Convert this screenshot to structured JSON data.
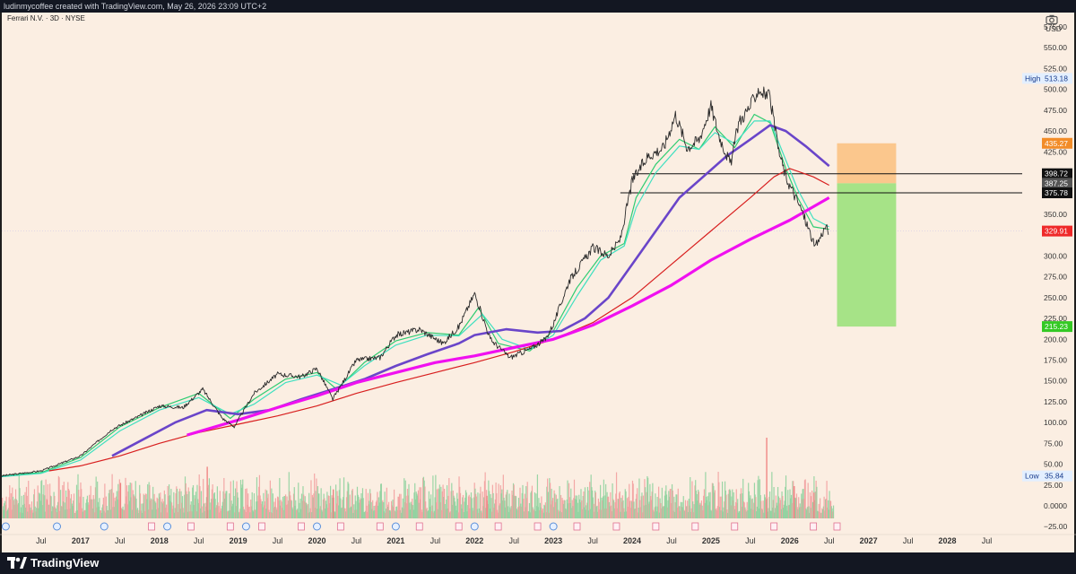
{
  "header": {
    "credit": "ludinmycoffee created with TradingView.com, May 26, 2026 23:09 UTC+2"
  },
  "legend": {
    "symbol": "Ferrari N.V. · 3D · NYSE"
  },
  "footer": {
    "brand": "TradingView"
  },
  "colors": {
    "background": "#fbeee2",
    "ema_fast": "#2ecc71",
    "ema_fast2": "#3fe0c0",
    "ma_blue": "#6a45c9",
    "ma_red": "#d81e1e",
    "ma_magenta": "#f010f0",
    "tp_zone": "#a6e387",
    "stop_zone": "#fbc78d"
  },
  "chart_data": {
    "type": "line",
    "title": "Ferrari N.V. · 3D · NYSE",
    "currency": "USD",
    "ylim": [
      -25,
      575
    ],
    "y_ticks": [
      "575.00",
      "550.00",
      "525.00",
      "500.00",
      "475.00",
      "450.00",
      "425.00",
      "400.00",
      "350.00",
      "300.00",
      "275.00",
      "250.00",
      "225.00",
      "200.00",
      "175.00",
      "150.00",
      "125.00",
      "100.00",
      "75.00",
      "50.00",
      "25.00",
      "0.0000",
      "−25.00"
    ],
    "x_ticks": [
      {
        "label": "Jul",
        "year": false,
        "t": 2016.5
      },
      {
        "label": "2017",
        "year": true,
        "t": 2017.0
      },
      {
        "label": "Jul",
        "year": false,
        "t": 2017.5
      },
      {
        "label": "2018",
        "year": true,
        "t": 2018.0
      },
      {
        "label": "Jul",
        "year": false,
        "t": 2018.5
      },
      {
        "label": "2019",
        "year": true,
        "t": 2019.0
      },
      {
        "label": "Jul",
        "year": false,
        "t": 2019.5
      },
      {
        "label": "2020",
        "year": true,
        "t": 2020.0
      },
      {
        "label": "Jul",
        "year": false,
        "t": 2020.5
      },
      {
        "label": "2021",
        "year": true,
        "t": 2021.0
      },
      {
        "label": "Jul",
        "year": false,
        "t": 2021.5
      },
      {
        "label": "2022",
        "year": true,
        "t": 2022.0
      },
      {
        "label": "Jul",
        "year": false,
        "t": 2022.5
      },
      {
        "label": "2023",
        "year": true,
        "t": 2023.0
      },
      {
        "label": "Jul",
        "year": false,
        "t": 2023.5
      },
      {
        "label": "2024",
        "year": true,
        "t": 2024.0
      },
      {
        "label": "Jul",
        "year": false,
        "t": 2024.5
      },
      {
        "label": "2025",
        "year": true,
        "t": 2025.0
      },
      {
        "label": "Jul",
        "year": false,
        "t": 2025.5
      },
      {
        "label": "2026",
        "year": true,
        "t": 2026.0
      },
      {
        "label": "Jul",
        "year": false,
        "t": 2026.5
      },
      {
        "label": "2027",
        "year": true,
        "t": 2027.0
      },
      {
        "label": "Jul",
        "year": false,
        "t": 2027.5
      },
      {
        "label": "2028",
        "year": true,
        "t": 2028.0
      },
      {
        "label": "Jul",
        "year": false,
        "t": 2028.5
      }
    ],
    "price": [
      [
        2016.0,
        36
      ],
      [
        2016.5,
        42
      ],
      [
        2017.0,
        60
      ],
      [
        2017.4,
        92
      ],
      [
        2017.75,
        108
      ],
      [
        2018.0,
        120
      ],
      [
        2018.3,
        118
      ],
      [
        2018.55,
        140
      ],
      [
        2018.8,
        105
      ],
      [
        2018.95,
        95
      ],
      [
        2019.2,
        135
      ],
      [
        2019.5,
        158
      ],
      [
        2019.8,
        155
      ],
      [
        2020.0,
        165
      ],
      [
        2020.2,
        128
      ],
      [
        2020.5,
        175
      ],
      [
        2020.8,
        178
      ],
      [
        2021.0,
        205
      ],
      [
        2021.3,
        212
      ],
      [
        2021.6,
        195
      ],
      [
        2021.8,
        215
      ],
      [
        2022.0,
        255
      ],
      [
        2022.2,
        200
      ],
      [
        2022.45,
        178
      ],
      [
        2022.7,
        188
      ],
      [
        2022.9,
        200
      ],
      [
        2023.0,
        218
      ],
      [
        2023.2,
        270
      ],
      [
        2023.5,
        310
      ],
      [
        2023.7,
        300
      ],
      [
        2023.85,
        320
      ],
      [
        2024.0,
        390
      ],
      [
        2024.2,
        420
      ],
      [
        2024.4,
        430
      ],
      [
        2024.55,
        470
      ],
      [
        2024.7,
        430
      ],
      [
        2024.85,
        440
      ],
      [
        2025.0,
        480
      ],
      [
        2025.1,
        445
      ],
      [
        2025.25,
        410
      ],
      [
        2025.35,
        460
      ],
      [
        2025.5,
        480
      ],
      [
        2025.6,
        500
      ],
      [
        2025.75,
        490
      ],
      [
        2025.85,
        430
      ],
      [
        2025.95,
        395
      ],
      [
        2026.05,
        375
      ],
      [
        2026.15,
        355
      ],
      [
        2026.25,
        330
      ],
      [
        2026.32,
        310
      ],
      [
        2026.4,
        325
      ],
      [
        2026.45,
        335
      ],
      [
        2026.5,
        330
      ]
    ],
    "series": [
      {
        "color": "#2ecc71",
        "points": [
          [
            2016.0,
            36
          ],
          [
            2016.5,
            40
          ],
          [
            2017.0,
            58
          ],
          [
            2017.5,
            95
          ],
          [
            2018.0,
            118
          ],
          [
            2018.5,
            135
          ],
          [
            2018.9,
            105
          ],
          [
            2019.2,
            128
          ],
          [
            2019.6,
            152
          ],
          [
            2020.0,
            160
          ],
          [
            2020.25,
            140
          ],
          [
            2020.6,
            172
          ],
          [
            2021.0,
            198
          ],
          [
            2021.4,
            208
          ],
          [
            2021.8,
            205
          ],
          [
            2022.05,
            238
          ],
          [
            2022.3,
            195
          ],
          [
            2022.7,
            186
          ],
          [
            2023.0,
            210
          ],
          [
            2023.3,
            262
          ],
          [
            2023.6,
            300
          ],
          [
            2023.9,
            315
          ],
          [
            2024.05,
            370
          ],
          [
            2024.3,
            410
          ],
          [
            2024.6,
            440
          ],
          [
            2024.85,
            428
          ],
          [
            2025.05,
            455
          ],
          [
            2025.3,
            430
          ],
          [
            2025.55,
            470
          ],
          [
            2025.75,
            460
          ],
          [
            2025.95,
            405
          ],
          [
            2026.1,
            370
          ],
          [
            2026.3,
            335
          ],
          [
            2026.5,
            332
          ]
        ]
      },
      {
        "color": "#3fe0c0",
        "points": [
          [
            2016.0,
            35
          ],
          [
            2016.5,
            39
          ],
          [
            2017.0,
            55
          ],
          [
            2017.5,
            90
          ],
          [
            2018.0,
            115
          ],
          [
            2018.5,
            130
          ],
          [
            2018.9,
            110
          ],
          [
            2019.2,
            122
          ],
          [
            2019.6,
            148
          ],
          [
            2020.0,
            157
          ],
          [
            2020.3,
            145
          ],
          [
            2020.6,
            168
          ],
          [
            2021.0,
            193
          ],
          [
            2021.4,
            205
          ],
          [
            2021.8,
            204
          ],
          [
            2022.1,
            230
          ],
          [
            2022.35,
            200
          ],
          [
            2022.7,
            188
          ],
          [
            2023.0,
            205
          ],
          [
            2023.3,
            252
          ],
          [
            2023.6,
            295
          ],
          [
            2023.9,
            312
          ],
          [
            2024.05,
            358
          ],
          [
            2024.3,
            400
          ],
          [
            2024.6,
            432
          ],
          [
            2024.85,
            428
          ],
          [
            2025.05,
            448
          ],
          [
            2025.3,
            435
          ],
          [
            2025.55,
            462
          ],
          [
            2025.75,
            462
          ],
          [
            2025.95,
            415
          ],
          [
            2026.1,
            380
          ],
          [
            2026.3,
            345
          ],
          [
            2026.5,
            335
          ]
        ]
      },
      {
        "color": "#6a45c9",
        "points": [
          [
            2017.4,
            60
          ],
          [
            2017.8,
            80
          ],
          [
            2018.2,
            100
          ],
          [
            2018.6,
            115
          ],
          [
            2019.0,
            110
          ],
          [
            2019.4,
            115
          ],
          [
            2019.8,
            128
          ],
          [
            2020.2,
            140
          ],
          [
            2020.6,
            152
          ],
          [
            2021.0,
            168
          ],
          [
            2021.4,
            182
          ],
          [
            2021.8,
            195
          ],
          [
            2022.0,
            205
          ],
          [
            2022.4,
            212
          ],
          [
            2022.8,
            208
          ],
          [
            2023.1,
            210
          ],
          [
            2023.4,
            225
          ],
          [
            2023.7,
            250
          ],
          [
            2024.0,
            290
          ],
          [
            2024.3,
            330
          ],
          [
            2024.6,
            370
          ],
          [
            2024.9,
            395
          ],
          [
            2025.2,
            420
          ],
          [
            2025.5,
            440
          ],
          [
            2025.75,
            457
          ],
          [
            2025.95,
            450
          ],
          [
            2026.2,
            432
          ],
          [
            2026.5,
            408
          ]
        ]
      },
      {
        "color": "#d81e1e",
        "points": [
          [
            2016.6,
            42
          ],
          [
            2017.0,
            48
          ],
          [
            2017.5,
            60
          ],
          [
            2018.0,
            75
          ],
          [
            2018.5,
            88
          ],
          [
            2019.0,
            98
          ],
          [
            2019.5,
            108
          ],
          [
            2020.0,
            120
          ],
          [
            2020.5,
            135
          ],
          [
            2021.0,
            148
          ],
          [
            2021.5,
            160
          ],
          [
            2022.0,
            172
          ],
          [
            2022.5,
            185
          ],
          [
            2023.0,
            200
          ],
          [
            2023.5,
            220
          ],
          [
            2024.0,
            250
          ],
          [
            2024.5,
            290
          ],
          [
            2025.0,
            330
          ],
          [
            2025.5,
            370
          ],
          [
            2025.8,
            395
          ],
          [
            2026.0,
            405
          ],
          [
            2026.3,
            395
          ],
          [
            2026.5,
            385
          ]
        ]
      },
      {
        "color": "#f010f0",
        "points": [
          [
            2018.35,
            85
          ],
          [
            2019.0,
            103
          ],
          [
            2019.5,
            118
          ],
          [
            2020.0,
            132
          ],
          [
            2020.5,
            148
          ],
          [
            2021.0,
            160
          ],
          [
            2021.5,
            172
          ],
          [
            2022.0,
            180
          ],
          [
            2022.5,
            190
          ],
          [
            2023.0,
            200
          ],
          [
            2023.5,
            217
          ],
          [
            2024.0,
            240
          ],
          [
            2024.5,
            265
          ],
          [
            2025.0,
            295
          ],
          [
            2025.5,
            320
          ],
          [
            2026.0,
            343
          ],
          [
            2026.5,
            370
          ]
        ]
      }
    ],
    "hlines": [
      375.78,
      398.72
    ],
    "position": {
      "target": 215.23,
      "entry": 387.25,
      "stop": 435.27
    },
    "price_labels": [
      {
        "value": "513.18",
        "y": 513.18,
        "bg": "#e3efff",
        "fg": "#1a3d8c",
        "side": "High"
      },
      {
        "value": "435.27",
        "y": 435.27,
        "bg": "#f28c28",
        "fg": "#ffffff"
      },
      {
        "value": "398.72",
        "y": 398.72,
        "bg": "#111111",
        "fg": "#ffffff"
      },
      {
        "value": "387.25",
        "y": 387.25,
        "bg": "#555555",
        "fg": "#ffffff"
      },
      {
        "value": "375.78",
        "y": 375.78,
        "bg": "#111111",
        "fg": "#ffffff"
      },
      {
        "value": "329.91",
        "y": 329.91,
        "bg": "#ef2929",
        "fg": "#ffffff"
      },
      {
        "value": "215.23",
        "y": 215.23,
        "bg": "#34c924",
        "fg": "#ffffff"
      },
      {
        "value": "35.84",
        "y": 35.84,
        "bg": "#e3efff",
        "fg": "#1a3d8c",
        "side": "Low"
      }
    ],
    "current_price": 329.91,
    "high": 513.18,
    "low": 35.84,
    "volume_spikes": [
      [
        2017.5,
        55
      ],
      [
        2018.6,
        80
      ],
      [
        2020.2,
        45
      ],
      [
        2022.15,
        35
      ],
      [
        2025.7,
        125
      ],
      [
        2026.05,
        50
      ],
      [
        2026.3,
        40
      ]
    ],
    "events_D": [
      2016.05,
      2016.7,
      2017.3,
      2018.1,
      2019.1,
      2020.0,
      2021.0,
      2022.0,
      2023.0
    ],
    "events_E": [
      2017.9,
      2018.4,
      2018.9,
      2019.3,
      2019.8,
      2020.3,
      2020.8,
      2021.3,
      2021.8,
      2022.3,
      2022.8,
      2023.3,
      2023.8,
      2024.3,
      2024.8,
      2025.3,
      2025.8,
      2026.3,
      2026.6
    ]
  }
}
